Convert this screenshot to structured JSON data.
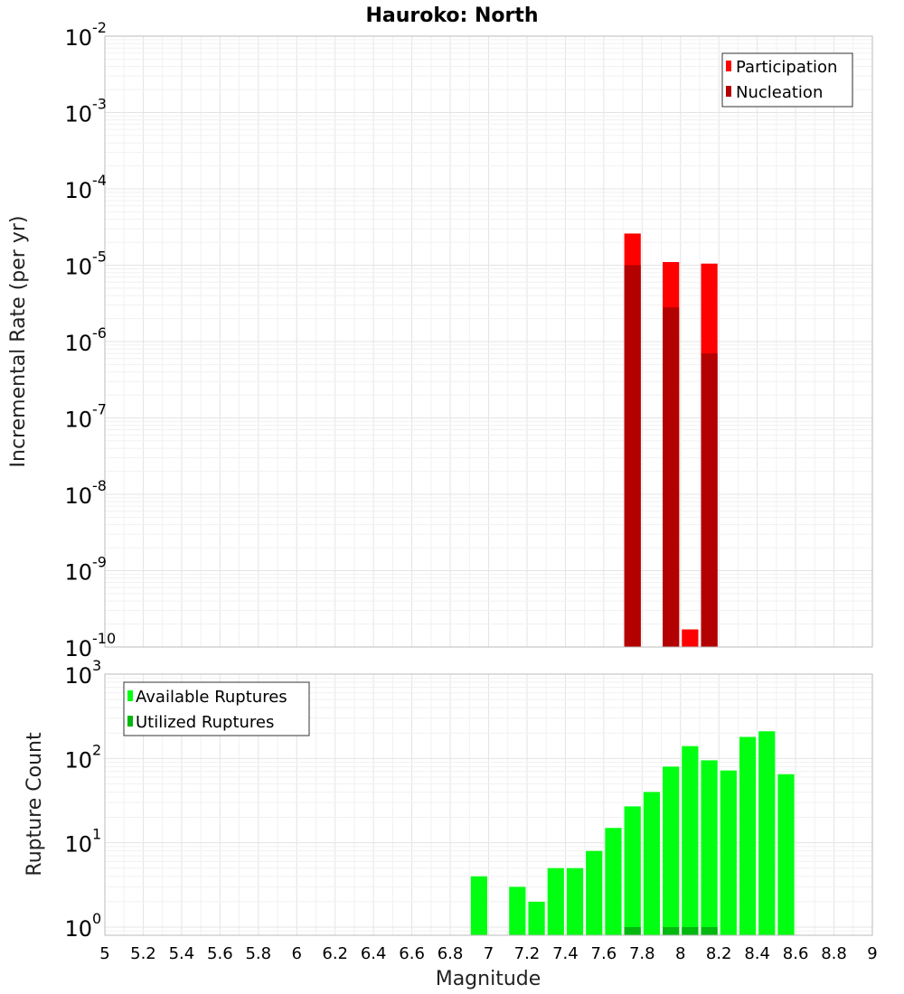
{
  "chart_data": [
    {
      "type": "bar",
      "title": "Hauroko: North",
      "xlabel": "Magnitude",
      "ylabel": "Incremental Rate (per yr)",
      "xlim": [
        5,
        9
      ],
      "ylim": [
        1e-10,
        0.01
      ],
      "yscale": "log",
      "bin_width": 0.1,
      "grid": true,
      "legend_position": "top-right",
      "series": [
        {
          "name": "Participation",
          "color": "#ff0000",
          "x": [
            7.75,
            7.95,
            8.05,
            8.15
          ],
          "values": [
            2.6e-05,
            1.1e-05,
            1.7e-10,
            1.05e-05
          ]
        },
        {
          "name": "Nucleation",
          "color": "#b30000",
          "x": [
            7.75,
            7.95,
            8.15
          ],
          "values": [
            1e-05,
            2.8e-06,
            7e-07
          ]
        }
      ]
    },
    {
      "type": "bar",
      "xlabel": "Magnitude",
      "ylabel": "Rupture Count",
      "xlim": [
        5,
        9
      ],
      "ylim": [
        0.8,
        1000
      ],
      "yscale": "log",
      "bin_width": 0.1,
      "grid": true,
      "legend_position": "top-left",
      "series": [
        {
          "name": "Available Ruptures",
          "color": "#00ff11",
          "x": [
            6.95,
            7.15,
            7.25,
            7.35,
            7.45,
            7.55,
            7.65,
            7.75,
            7.85,
            7.95,
            8.05,
            8.15,
            8.25,
            8.35,
            8.45,
            8.55
          ],
          "values": [
            4,
            3,
            2,
            5,
            5,
            8,
            15,
            27,
            40,
            80,
            140,
            95,
            72,
            180,
            210,
            65
          ]
        },
        {
          "name": "Utilized Ruptures",
          "color": "#00b80e",
          "x": [
            7.75,
            7.95,
            8.05,
            8.15
          ],
          "values": [
            1,
            1,
            1,
            1
          ]
        }
      ]
    }
  ],
  "x_ticks": [
    "5",
    "5.2",
    "5.4",
    "5.6",
    "5.8",
    "6",
    "6.2",
    "6.4",
    "6.6",
    "6.8",
    "7",
    "7.2",
    "7.4",
    "7.6",
    "7.8",
    "8",
    "8.2",
    "8.4",
    "8.6",
    "8.8",
    "9"
  ],
  "top_y_ticks": [
    {
      "base": "10",
      "exp": "-10"
    },
    {
      "base": "10",
      "exp": "-9"
    },
    {
      "base": "10",
      "exp": "-8"
    },
    {
      "base": "10",
      "exp": "-7"
    },
    {
      "base": "10",
      "exp": "-6"
    },
    {
      "base": "10",
      "exp": "-5"
    },
    {
      "base": "10",
      "exp": "-4"
    },
    {
      "base": "10",
      "exp": "-3"
    },
    {
      "base": "10",
      "exp": "-2"
    }
  ],
  "bottom_y_ticks": [
    {
      "base": "10",
      "exp": "0"
    },
    {
      "base": "10",
      "exp": "1"
    },
    {
      "base": "10",
      "exp": "2"
    },
    {
      "base": "10",
      "exp": "3"
    }
  ]
}
